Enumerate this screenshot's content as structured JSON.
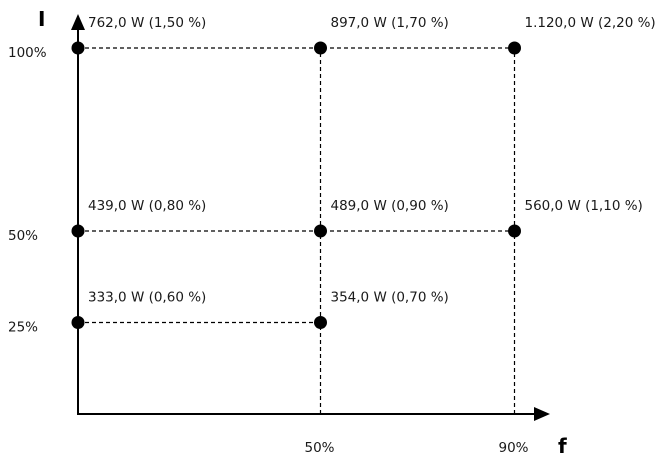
{
  "axes": {
    "x_name": "f",
    "y_name": "I"
  },
  "x_ticks": [
    {
      "value": 50,
      "label": "50%"
    },
    {
      "value": 90,
      "label": "90%"
    }
  ],
  "y_ticks": [
    {
      "value": 100,
      "label": "100%"
    },
    {
      "value": 50,
      "label": "50%"
    },
    {
      "value": 25,
      "label": "25%"
    }
  ],
  "points": [
    {
      "f": 0,
      "i": 100,
      "label": "762,0 W (1,50 %)"
    },
    {
      "f": 50,
      "i": 100,
      "label": "897,0 W (1,70 %)"
    },
    {
      "f": 90,
      "i": 100,
      "label": "1.120,0 W (2,20 %)"
    },
    {
      "f": 0,
      "i": 50,
      "label": "439,0 W (0,80 %)"
    },
    {
      "f": 50,
      "i": 50,
      "label": "489,0 W (0,90 %)"
    },
    {
      "f": 90,
      "i": 50,
      "label": "560,0 W (1,10 %)"
    },
    {
      "f": 0,
      "i": 25,
      "label": "333,0 W (0,60 %)"
    },
    {
      "f": 50,
      "i": 25,
      "label": "354,0 W (0,70 %)"
    }
  ],
  "colors": {
    "line": "#000000",
    "point": "#000000",
    "text": "#1a1a1a"
  }
}
